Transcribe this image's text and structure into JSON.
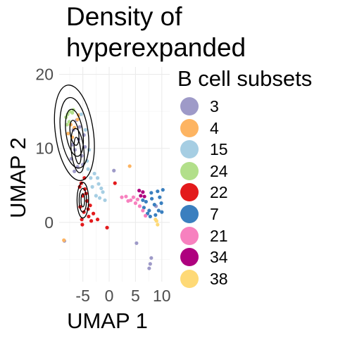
{
  "chart_data": {
    "type": "scatter",
    "title_lines": [
      "Density of",
      "hyperexpanded"
    ],
    "xlabel": "UMAP 1",
    "ylabel": "UMAP 2",
    "xlim": [
      -9.5,
      11.5
    ],
    "ylim": [
      -8,
      21
    ],
    "x_ticks": [
      -5,
      0,
      5,
      10
    ],
    "x_tick_labels": [
      "-5",
      "0",
      "5",
      "10"
    ],
    "y_ticks": [
      0,
      10,
      20
    ],
    "y_tick_labels": [
      "0",
      "10",
      "20"
    ],
    "grid": true,
    "legend_placement": "right",
    "legend_title": "B cell subsets",
    "density_contours": "black",
    "series": [
      {
        "name": "3",
        "color": "#9E9AC8",
        "points": [
          [
            -7.2,
            8.6
          ],
          [
            -6.5,
            9.8
          ],
          [
            -5.8,
            11.2
          ],
          [
            -6.8,
            12.5
          ],
          [
            -6.0,
            7.5
          ],
          [
            -5.2,
            9.0
          ],
          [
            -7.0,
            10.5
          ],
          [
            -4.8,
            11.8
          ],
          [
            -6.2,
            13.8
          ],
          [
            -5.0,
            7.8
          ],
          [
            -6.6,
            6.9
          ],
          [
            -4.6,
            10.2
          ],
          [
            0.9,
            7.0
          ],
          [
            -8.5,
            -2.5
          ],
          [
            5.2,
            -2.8
          ],
          [
            8.0,
            -4.8
          ],
          [
            7.8,
            -5.6
          ],
          [
            7.6,
            -6.2
          ],
          [
            8.9,
            2.2
          ],
          [
            -5.6,
            12.9
          ]
        ]
      },
      {
        "name": "4",
        "color": "#FDB462",
        "points": [
          [
            -7.3,
            13.2
          ],
          [
            -6.6,
            12.8
          ],
          [
            -7.8,
            12.0
          ],
          [
            -6.0,
            13.9
          ],
          [
            -7.0,
            11.5
          ],
          [
            3.9,
            7.6
          ],
          [
            -8.6,
            -2.4
          ],
          [
            -5.8,
            14.5
          ]
        ]
      },
      {
        "name": "15",
        "color": "#A6CEE3",
        "points": [
          [
            -4.0,
            7.2
          ],
          [
            -2.8,
            6.6
          ],
          [
            -2.0,
            5.2
          ],
          [
            -1.2,
            4.1
          ],
          [
            -3.2,
            4.8
          ],
          [
            -1.8,
            3.3
          ],
          [
            -3.8,
            9.8
          ],
          [
            -4.5,
            12.5
          ],
          [
            -2.5,
            3.6
          ],
          [
            -0.8,
            3.0
          ],
          [
            -3.5,
            6.0
          ],
          [
            -4.2,
            8.3
          ],
          [
            -1.5,
            4.6
          ],
          [
            -2.2,
            6.0
          ],
          [
            -5.3,
            14.6
          ]
        ]
      },
      {
        "name": "24",
        "color": "#B2DF8A",
        "points": [
          [
            -7.9,
            14.6
          ],
          [
            -7.5,
            15.0
          ],
          [
            -8.2,
            14.2
          ],
          [
            -7.0,
            14.8
          ],
          [
            -6.8,
            15.2
          ],
          [
            -7.6,
            13.6
          ],
          [
            -8.0,
            13.2
          ]
        ]
      },
      {
        "name": "22",
        "color": "#E31A1C",
        "points": [
          [
            -5.3,
            5.3
          ],
          [
            -4.6,
            4.5
          ],
          [
            -5.0,
            3.6
          ],
          [
            -4.2,
            2.9
          ],
          [
            -5.5,
            2.1
          ],
          [
            -4.8,
            1.4
          ],
          [
            -3.9,
            0.8
          ],
          [
            -5.2,
            0.4
          ],
          [
            -4.4,
            3.9
          ],
          [
            -3.6,
            2.3
          ],
          [
            -5.6,
            4.8
          ],
          [
            -4.0,
            1.8
          ],
          [
            -3.0,
            1.2
          ],
          [
            -4.7,
            6.0
          ],
          [
            -2.2,
            0.4
          ],
          [
            -0.4,
            -0.7
          ],
          [
            1.1,
            5.3
          ],
          [
            -3.4,
            0.2
          ],
          [
            -5.1,
            -0.3
          ]
        ]
      },
      {
        "name": "7",
        "color": "#3A7FBF",
        "points": [
          [
            7.0,
            2.8
          ],
          [
            8.1,
            3.2
          ],
          [
            9.2,
            4.2
          ],
          [
            7.6,
            1.6
          ],
          [
            8.6,
            2.4
          ],
          [
            9.6,
            3.4
          ],
          [
            6.6,
            2.0
          ],
          [
            7.3,
            1.2
          ],
          [
            8.8,
            1.0
          ],
          [
            9.9,
            2.6
          ],
          [
            9.4,
            1.6
          ],
          [
            8.0,
            4.0
          ],
          [
            10.2,
            4.4
          ],
          [
            7.8,
            0.8
          ],
          [
            6.4,
            3.0
          ],
          [
            10.0,
            1.4
          ]
        ]
      },
      {
        "name": "21",
        "color": "#F781BF",
        "points": [
          [
            3.2,
            3.5
          ],
          [
            4.1,
            3.0
          ],
          [
            5.0,
            2.6
          ],
          [
            5.8,
            2.2
          ],
          [
            6.4,
            1.6
          ],
          [
            6.9,
            0.9
          ],
          [
            3.6,
            2.9
          ],
          [
            5.4,
            3.1
          ],
          [
            2.4,
            3.4
          ],
          [
            4.6,
            3.4
          ]
        ]
      },
      {
        "name": "34",
        "color": "#AE017E",
        "points": [
          [
            6.0,
            3.6
          ],
          [
            6.4,
            4.1
          ],
          [
            5.7,
            4.3
          ],
          [
            6.7,
            3.5
          ]
        ]
      },
      {
        "name": "38",
        "color": "#FED976",
        "points": [
          [
            9.0,
            0.2
          ],
          [
            9.2,
            -0.3
          ],
          [
            8.8,
            0.4
          ]
        ]
      }
    ]
  }
}
